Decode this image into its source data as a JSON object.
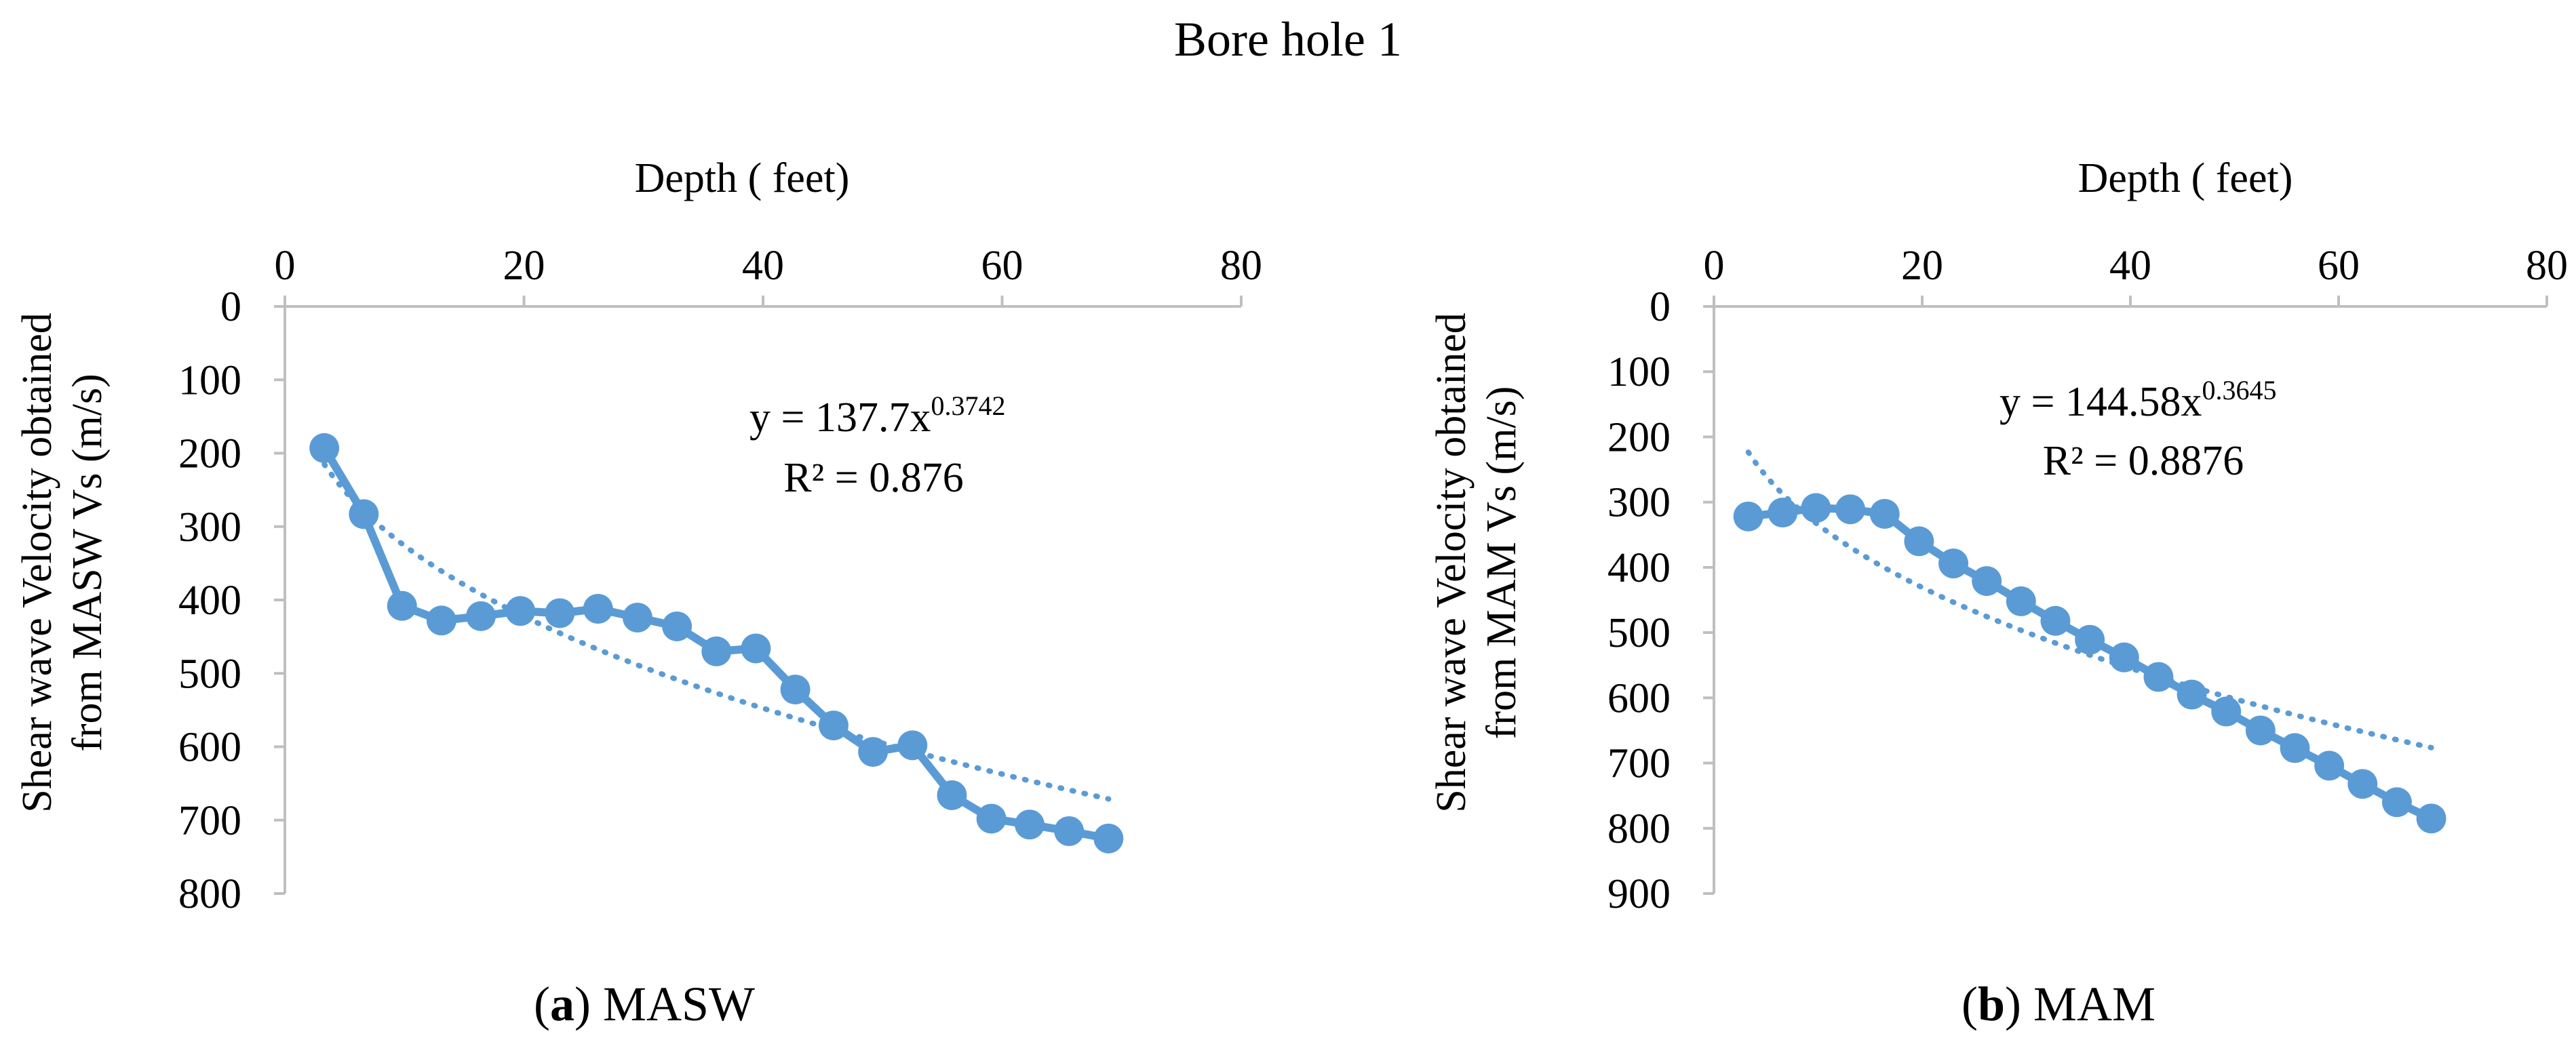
{
  "figure": {
    "title": "Bore hole 1",
    "colors": {
      "series": "#5b9bd5",
      "axis": "#bfbfbf",
      "text": "#000000"
    }
  },
  "chart_data": [
    {
      "id": "masw",
      "type": "line",
      "caption_letter": "a",
      "caption_text": " MASW",
      "xlabel": "Depth ( feet)",
      "ylabel_line1": "Shear wave Velocity obtained",
      "ylabel_line2": "from MASW Vs (m/s)",
      "xlim": [
        0,
        80
      ],
      "xticks": [
        0,
        20,
        40,
        60,
        80
      ],
      "ylim": [
        0,
        800
      ],
      "yticks": [
        0,
        100,
        200,
        300,
        400,
        500,
        600,
        700,
        800
      ],
      "y_axis_inverted": true,
      "x_axis_position": "top",
      "series": [
        {
          "name": "Vs",
          "x": [
            3.3,
            6.6,
            9.8,
            13.1,
            16.4,
            19.7,
            23.0,
            26.2,
            29.5,
            32.8,
            36.1,
            39.4,
            42.7,
            45.9,
            49.2,
            52.5,
            55.8,
            59.1,
            62.3,
            65.6,
            68.9
          ],
          "y": [
            193,
            283,
            408,
            428,
            422,
            415,
            418,
            412,
            424,
            436,
            470,
            466,
            522,
            571,
            607,
            598,
            666,
            698,
            706,
            715,
            725
          ]
        }
      ],
      "trendline": {
        "type": "power",
        "a": 137.7,
        "b": 0.3742,
        "x_range": [
          3.3,
          68.9
        ],
        "style": "dotted"
      },
      "equation": {
        "prefix": "y = 137.7x",
        "exponent": "0.3742",
        "r2": "R² = 0.876"
      }
    },
    {
      "id": "mam",
      "type": "line",
      "caption_letter": "b",
      "caption_text": " MAM",
      "xlabel": "Depth ( feet)",
      "ylabel_line1": "Shear wave Velocity  obtained",
      "ylabel_line2": "from MAM Vs (m/s)",
      "xlim": [
        0,
        80
      ],
      "xticks": [
        0,
        20,
        40,
        60,
        80
      ],
      "ylim": [
        0,
        900
      ],
      "yticks": [
        0,
        100,
        200,
        300,
        400,
        500,
        600,
        700,
        800,
        900
      ],
      "y_axis_inverted": true,
      "x_axis_position": "top",
      "series": [
        {
          "name": "Vs",
          "x": [
            3.3,
            6.6,
            9.8,
            13.1,
            16.4,
            19.7,
            23.0,
            26.2,
            29.5,
            32.8,
            36.1,
            39.4,
            42.7,
            45.9,
            49.2,
            52.5,
            55.8,
            59.1,
            62.3,
            65.6,
            68.9
          ],
          "y": [
            322,
            316,
            309,
            311,
            318,
            360,
            394,
            421,
            452,
            482,
            511,
            538,
            568,
            595,
            621,
            650,
            677,
            704,
            732,
            760,
            785
          ]
        }
      ],
      "trendline": {
        "type": "power",
        "a": 144.58,
        "b": 0.3645,
        "x_range": [
          3.3,
          68.9
        ],
        "style": "dotted"
      },
      "equation": {
        "prefix": "y = 144.58x",
        "exponent": "0.3645",
        "r2": "R² = 0.8876"
      }
    }
  ]
}
